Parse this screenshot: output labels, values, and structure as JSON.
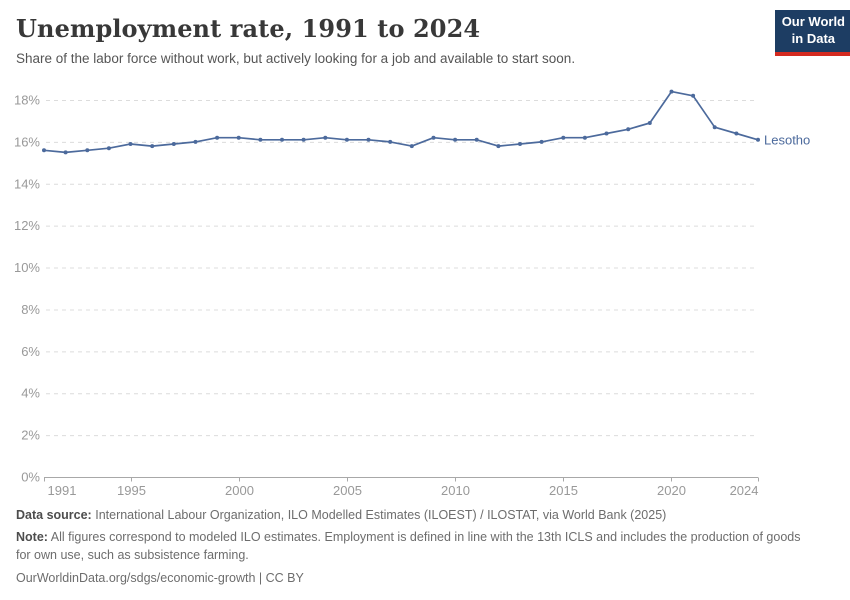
{
  "header": {
    "title": "Unemployment rate, 1991 to 2024",
    "subtitle": "Share of the labor force without work, but actively looking for a job and available to start soon.",
    "logo_line1": "Our World",
    "logo_line2": "in Data"
  },
  "chart_data": {
    "type": "line",
    "title": "Unemployment rate, 1991 to 2024",
    "xlabel": "",
    "ylabel": "",
    "ylim": [
      0,
      18
    ],
    "ytick_step": 2,
    "ytick_suffix": "%",
    "grid": "horizontal-dashed",
    "legend_position": "end-of-line-label",
    "xticks": [
      1991,
      1995,
      2000,
      2005,
      2010,
      2015,
      2020,
      2024
    ],
    "x": [
      1991,
      1992,
      1993,
      1994,
      1995,
      1996,
      1997,
      1998,
      1999,
      2000,
      2001,
      2002,
      2003,
      2004,
      2005,
      2006,
      2007,
      2008,
      2009,
      2010,
      2011,
      2012,
      2013,
      2014,
      2015,
      2016,
      2017,
      2018,
      2019,
      2020,
      2021,
      2022,
      2023,
      2024
    ],
    "series": [
      {
        "name": "Lesotho",
        "color": "#4c6a9c",
        "values": [
          15.6,
          15.5,
          15.6,
          15.7,
          15.9,
          15.8,
          15.9,
          16.0,
          16.2,
          16.2,
          16.1,
          16.1,
          16.1,
          16.2,
          16.1,
          16.1,
          16.0,
          15.8,
          16.2,
          16.1,
          16.1,
          15.8,
          15.9,
          16.0,
          16.2,
          16.2,
          16.4,
          16.6,
          16.9,
          18.4,
          18.2,
          16.7,
          16.4,
          16.1
        ]
      }
    ]
  },
  "footer": {
    "datasource_label": "Data source:",
    "datasource_text": "International Labour Organization, ILO Modelled Estimates (ILOEST) / ILOSTAT, via World Bank (2025)",
    "note_label": "Note:",
    "note_text": "All figures correspond to modeled ILO estimates. Employment is defined in line with the 13th ICLS and includes the production of goods for own use, such as subsistence farming.",
    "link_text": "OurWorldinData.org/sdgs/economic-growth | CC BY"
  },
  "colors": {
    "line": "#4c6a9c",
    "grid": "#dcdcdc",
    "axis": "#a8a8a8",
    "tick_label": "#999999",
    "title": "#383838",
    "subtitle": "#555555",
    "logo_bg": "#1d3d63",
    "logo_red": "#d42a20",
    "footer": "#6d6d6d"
  }
}
